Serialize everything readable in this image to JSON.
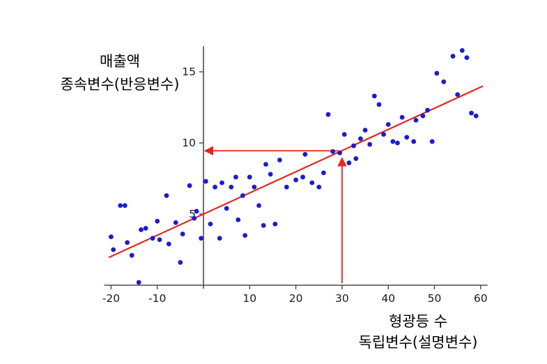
{
  "labels": {
    "y_axis": {
      "line1": "매출액",
      "line2": "종속변수(반응변수)"
    },
    "x_axis": {
      "line1": "형광등 수",
      "line2": "독립변수(설명변수)"
    }
  },
  "chart_data": {
    "type": "scatter",
    "title": "",
    "xlabel": "형광등 수 독립변수(설명변수)",
    "ylabel": "매출액 종속변수(반응변수)",
    "xlim": [
      -21.5,
      61.5
    ],
    "ylim": [
      0,
      16.8
    ],
    "x_ticks": [
      -20,
      -10,
      10,
      20,
      30,
      40,
      50,
      60
    ],
    "y_ticks": [
      5,
      10,
      15
    ],
    "grid": false,
    "legend": "none",
    "point_color": "#1b1bd1",
    "line_color": "#e8251f",
    "axis_color": "#4a4a4a",
    "regression_line": {
      "x1": -20.5,
      "y1": 1.95,
      "x2": 60.5,
      "y2": 14.0
    },
    "arrows": [
      {
        "name": "x-to-line-arrow",
        "x1": 30,
        "y1": 0.15,
        "x2": 30,
        "y2": 8.85
      },
      {
        "name": "line-to-y-arrow",
        "x1": 29.2,
        "y1": 9.45,
        "x2": 0.6,
        "y2": 9.45
      }
    ],
    "points": [
      [
        -20,
        3.4
      ],
      [
        -19.5,
        2.5
      ],
      [
        -18,
        5.6
      ],
      [
        -17,
        5.6
      ],
      [
        -16.5,
        3.0
      ],
      [
        -15.5,
        2.1
      ],
      [
        -14,
        0.2
      ],
      [
        -13.5,
        3.9
      ],
      [
        -12.5,
        4.0
      ],
      [
        -11,
        3.3
      ],
      [
        -10,
        4.5
      ],
      [
        -9.5,
        3.2
      ],
      [
        -8,
        6.3
      ],
      [
        -7.5,
        2.9
      ],
      [
        -6,
        4.4
      ],
      [
        -5,
        1.6
      ],
      [
        -4.5,
        3.6
      ],
      [
        -3,
        7.0
      ],
      [
        -2,
        4.7
      ],
      [
        -1.5,
        5.2
      ],
      [
        -0.5,
        3.3
      ],
      [
        0.5,
        7.3
      ],
      [
        1.5,
        4.3
      ],
      [
        2.5,
        6.9
      ],
      [
        3.5,
        3.3
      ],
      [
        4,
        7.2
      ],
      [
        5,
        5.4
      ],
      [
        6,
        6.9
      ],
      [
        7,
        7.6
      ],
      [
        7.5,
        4.6
      ],
      [
        8.5,
        6.3
      ],
      [
        9,
        3.5
      ],
      [
        10,
        7.6
      ],
      [
        11,
        6.9
      ],
      [
        12,
        5.6
      ],
      [
        13,
        4.2
      ],
      [
        13.5,
        8.5
      ],
      [
        14.5,
        7.8
      ],
      [
        15.5,
        4.3
      ],
      [
        16.5,
        8.8
      ],
      [
        18,
        6.9
      ],
      [
        20,
        7.4
      ],
      [
        21.5,
        7.6
      ],
      [
        22,
        9.2
      ],
      [
        23.5,
        7.2
      ],
      [
        25,
        6.9
      ],
      [
        26,
        7.9
      ],
      [
        27,
        12.0
      ],
      [
        28,
        9.4
      ],
      [
        29.5,
        9.3
      ],
      [
        30.5,
        10.6
      ],
      [
        31.5,
        8.6
      ],
      [
        32.5,
        9.8
      ],
      [
        33,
        8.9
      ],
      [
        34,
        10.3
      ],
      [
        35,
        10.9
      ],
      [
        36,
        9.9
      ],
      [
        37,
        13.3
      ],
      [
        38,
        12.7
      ],
      [
        39,
        10.6
      ],
      [
        40,
        11.3
      ],
      [
        41,
        10.1
      ],
      [
        42,
        10.0
      ],
      [
        43,
        11.8
      ],
      [
        44,
        10.4
      ],
      [
        45.5,
        10.1
      ],
      [
        46,
        11.6
      ],
      [
        47.5,
        11.9
      ],
      [
        48.5,
        12.3
      ],
      [
        49.5,
        10.1
      ],
      [
        50.5,
        14.9
      ],
      [
        52,
        14.3
      ],
      [
        54,
        16.1
      ],
      [
        55,
        13.4
      ],
      [
        56,
        16.5
      ],
      [
        57,
        16.0
      ],
      [
        58,
        12.1
      ],
      [
        59,
        11.9
      ]
    ]
  }
}
